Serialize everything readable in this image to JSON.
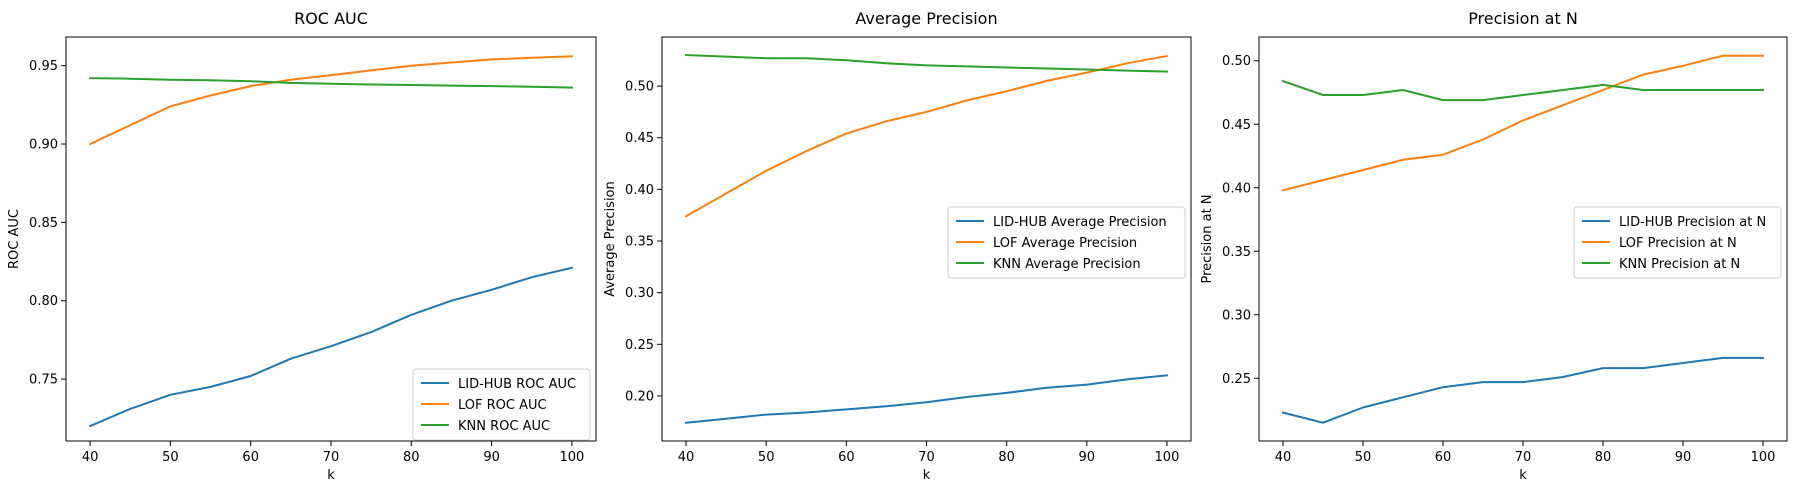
{
  "figure": {
    "background": "#ffffff"
  },
  "chart_data": [
    {
      "type": "line",
      "title": "ROC AUC",
      "xlabel": "k",
      "ylabel": "ROC AUC",
      "x": [
        40,
        45,
        50,
        55,
        60,
        65,
        70,
        75,
        80,
        85,
        90,
        95,
        100
      ],
      "xlim": [
        37,
        103
      ],
      "ylim": [
        0.7105,
        0.9683
      ],
      "xticks": [
        40,
        50,
        60,
        70,
        80,
        90,
        100
      ],
      "yticks": [
        0.75,
        0.8,
        0.85,
        0.9,
        0.95
      ],
      "ytick_decimals": 2,
      "grid": false,
      "legend": "lower right",
      "series": [
        {
          "name": "LID-HUB ROC AUC",
          "color": "#1f77b4",
          "values": [
            0.72,
            0.731,
            0.74,
            0.745,
            0.752,
            0.763,
            0.771,
            0.78,
            0.791,
            0.8,
            0.807,
            0.815,
            0.821
          ]
        },
        {
          "name": "LOF ROC AUC",
          "color": "#ff7f0e",
          "values": [
            0.9,
            0.912,
            0.924,
            0.931,
            0.937,
            0.941,
            0.944,
            0.947,
            0.95,
            0.952,
            0.954,
            0.955,
            0.956
          ]
        },
        {
          "name": "KNN ROC AUC",
          "color": "#2ca02c",
          "values": [
            0.942,
            0.9417,
            0.941,
            0.9407,
            0.94,
            0.939,
            0.9385,
            0.938,
            0.9377,
            0.9373,
            0.937,
            0.9365,
            0.936
          ]
        }
      ]
    },
    {
      "type": "line",
      "title": "Average Precision",
      "xlabel": "k",
      "ylabel": "Average Precision",
      "x": [
        40,
        45,
        50,
        55,
        60,
        65,
        70,
        75,
        80,
        85,
        90,
        95,
        100
      ],
      "xlim": [
        37,
        103
      ],
      "ylim": [
        0.1564,
        0.5475
      ],
      "xticks": [
        40,
        50,
        60,
        70,
        80,
        90,
        100
      ],
      "yticks": [
        0.2,
        0.25,
        0.3,
        0.35,
        0.4,
        0.45,
        0.5
      ],
      "ytick_decimals": 2,
      "grid": false,
      "legend": "center right",
      "series": [
        {
          "name": "LID-HUB Average Precision",
          "color": "#1f77b4",
          "values": [
            0.174,
            0.178,
            0.182,
            0.184,
            0.187,
            0.19,
            0.194,
            0.199,
            0.203,
            0.208,
            0.211,
            0.216,
            0.22
          ]
        },
        {
          "name": "LOF Average Precision",
          "color": "#ff7f0e",
          "values": [
            0.374,
            0.396,
            0.418,
            0.437,
            0.454,
            0.466,
            0.475,
            0.486,
            0.495,
            0.505,
            0.513,
            0.522,
            0.529
          ]
        },
        {
          "name": "KNN Average Precision",
          "color": "#2ca02c",
          "values": [
            0.53,
            0.5285,
            0.527,
            0.527,
            0.525,
            0.522,
            0.52,
            0.519,
            0.518,
            0.517,
            0.516,
            0.515,
            0.514
          ]
        }
      ]
    },
    {
      "type": "line",
      "title": "Precision at N",
      "xlabel": "k",
      "ylabel": "Precision at N",
      "x": [
        40,
        45,
        50,
        55,
        60,
        65,
        70,
        75,
        80,
        85,
        90,
        95,
        100
      ],
      "xlim": [
        37,
        103
      ],
      "ylim": [
        0.2006,
        0.5187
      ],
      "xticks": [
        40,
        50,
        60,
        70,
        80,
        90,
        100
      ],
      "yticks": [
        0.25,
        0.3,
        0.35,
        0.4,
        0.45,
        0.5
      ],
      "ytick_decimals": 2,
      "grid": false,
      "legend": "center right",
      "series": [
        {
          "name": "LID-HUB Precision at N",
          "color": "#1f77b4",
          "values": [
            0.223,
            0.215,
            0.227,
            0.235,
            0.243,
            0.247,
            0.247,
            0.251,
            0.258,
            0.258,
            0.262,
            0.266,
            0.266
          ]
        },
        {
          "name": "LOF Precision at N",
          "color": "#ff7f0e",
          "values": [
            0.398,
            0.406,
            0.414,
            0.422,
            0.426,
            0.438,
            0.453,
            0.465,
            0.477,
            0.489,
            0.496,
            0.504,
            0.504
          ]
        },
        {
          "name": "KNN Precision at N",
          "color": "#2ca02c",
          "values": [
            0.484,
            0.473,
            0.473,
            0.477,
            0.469,
            0.469,
            0.473,
            0.477,
            0.481,
            0.477,
            0.477,
            0.477,
            0.477
          ]
        }
      ]
    }
  ]
}
